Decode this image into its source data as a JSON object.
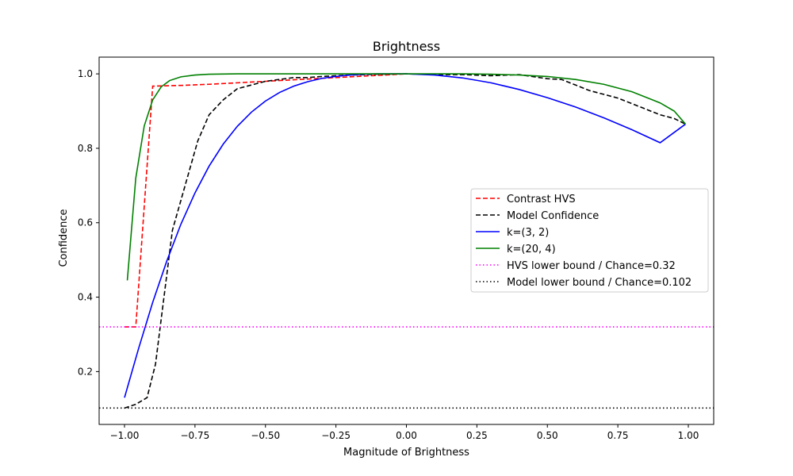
{
  "chart_data": {
    "type": "line",
    "title": "Brightness",
    "xlabel": "Magnitude of Brightness",
    "ylabel": "Confidence",
    "xlim": [
      -1.09,
      1.09
    ],
    "ylim": [
      0.058,
      1.045
    ],
    "xticks": [
      -1.0,
      -0.75,
      -0.5,
      -0.25,
      0.0,
      0.25,
      0.5,
      0.75,
      1.0
    ],
    "xtick_labels": [
      "−1.00",
      "−0.75",
      "−0.50",
      "−0.25",
      "0.00",
      "0.25",
      "0.50",
      "0.75",
      "1.00"
    ],
    "yticks": [
      0.2,
      0.4,
      0.6,
      0.8,
      1.0
    ],
    "ytick_labels": [
      "0.2",
      "0.4",
      "0.6",
      "0.8",
      "1.0"
    ],
    "grid": false,
    "legend_position": "center-right",
    "series": [
      {
        "name": "Contrast HVS",
        "color": "#ff0000",
        "style": "dashed",
        "x": [
          -1.0,
          -0.96,
          -0.9,
          -0.8,
          -0.7,
          -0.6,
          -0.5,
          -0.4,
          -0.3,
          -0.2,
          -0.1,
          0.0
        ],
        "y": [
          0.32,
          0.32,
          0.967,
          0.969,
          0.972,
          0.976,
          0.98,
          0.984,
          0.988,
          0.992,
          0.996,
          1.0
        ]
      },
      {
        "name": "Model Confidence",
        "color": "#000000",
        "style": "dashed",
        "x": [
          -1.0,
          -0.96,
          -0.92,
          -0.89,
          -0.86,
          -0.83,
          -0.8,
          -0.77,
          -0.74,
          -0.7,
          -0.65,
          -0.6,
          -0.55,
          -0.5,
          -0.45,
          -0.4,
          -0.35,
          -0.3,
          -0.25,
          -0.2,
          -0.1,
          0.0,
          0.1,
          0.2,
          0.3,
          0.4,
          0.5,
          0.55,
          0.6,
          0.65,
          0.7,
          0.75,
          0.8,
          0.85,
          0.9,
          0.95,
          0.99
        ],
        "y": [
          0.102,
          0.112,
          0.13,
          0.22,
          0.4,
          0.58,
          0.66,
          0.74,
          0.82,
          0.89,
          0.93,
          0.96,
          0.97,
          0.98,
          0.985,
          0.99,
          0.99,
          0.993,
          0.995,
          0.997,
          0.999,
          1.0,
          0.998,
          0.998,
          0.995,
          0.998,
          0.987,
          0.985,
          0.97,
          0.955,
          0.945,
          0.935,
          0.92,
          0.905,
          0.89,
          0.88,
          0.865
        ]
      },
      {
        "name": "k=(3, 2)",
        "color": "#0000ff",
        "style": "solid",
        "x": [
          -1.0,
          -0.95,
          -0.9,
          -0.85,
          -0.8,
          -0.75,
          -0.7,
          -0.65,
          -0.6,
          -0.55,
          -0.5,
          -0.45,
          -0.4,
          -0.35,
          -0.3,
          -0.25,
          -0.2,
          -0.15,
          -0.1,
          -0.05,
          0.0,
          0.1,
          0.2,
          0.3,
          0.4,
          0.5,
          0.6,
          0.7,
          0.8,
          0.9,
          0.99
        ],
        "y": [
          0.13,
          0.262,
          0.386,
          0.497,
          0.596,
          0.68,
          0.752,
          0.811,
          0.859,
          0.897,
          0.927,
          0.95,
          0.967,
          0.979,
          0.988,
          0.993,
          0.997,
          0.999,
          1.0,
          1.0,
          1.0,
          0.997,
          0.989,
          0.976,
          0.958,
          0.936,
          0.911,
          0.882,
          0.85,
          0.815,
          0.865
        ]
      },
      {
        "name": "k=(20, 4)",
        "color": "#008000",
        "style": "solid",
        "x": [
          -0.99,
          -0.96,
          -0.93,
          -0.9,
          -0.87,
          -0.84,
          -0.8,
          -0.75,
          -0.7,
          -0.6,
          -0.5,
          -0.4,
          -0.3,
          -0.2,
          -0.1,
          0.0,
          0.1,
          0.2,
          0.3,
          0.4,
          0.5,
          0.6,
          0.7,
          0.8,
          0.9,
          0.95,
          0.99
        ],
        "y": [
          0.445,
          0.72,
          0.86,
          0.93,
          0.965,
          0.982,
          0.992,
          0.997,
          0.999,
          1.0,
          1.0,
          1.0,
          1.0,
          1.0,
          1.0,
          1.0,
          1.0,
          1.0,
          0.999,
          0.997,
          0.993,
          0.985,
          0.972,
          0.952,
          0.922,
          0.9,
          0.865
        ]
      },
      {
        "name": "HVS lower bound / Chance=0.32",
        "color": "#ff00ff",
        "style": "dotted",
        "hline": 0.32
      },
      {
        "name": "Model lower bound / Chance=0.102",
        "color": "#000000",
        "style": "dotted",
        "hline": 0.102
      }
    ]
  }
}
